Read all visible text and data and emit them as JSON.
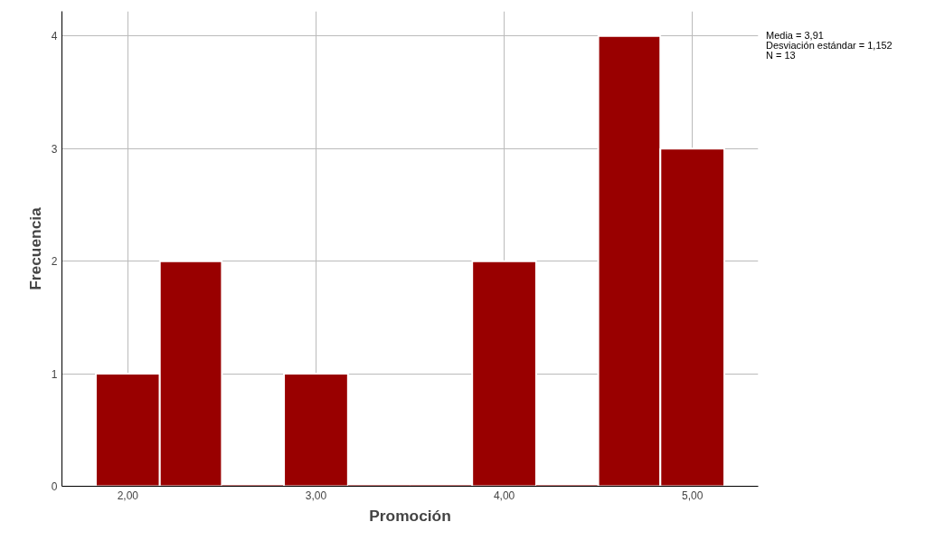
{
  "chart_data": {
    "type": "histogram",
    "xlabel": "Promoción",
    "ylabel": "Frecuencia",
    "bins": [
      1.83,
      2.17,
      2.5,
      2.83,
      3.17,
      3.5,
      3.83,
      4.17,
      4.5,
      4.83,
      5.17
    ],
    "values": [
      1,
      2,
      0,
      1,
      0,
      0,
      2,
      0,
      4,
      3
    ],
    "color": "#990000",
    "xlim": [
      1.65,
      5.35
    ],
    "ylim": [
      0,
      4.22
    ],
    "xticks": [
      {
        "value": 2,
        "label": "2,00"
      },
      {
        "value": 3,
        "label": "3,00"
      },
      {
        "value": 4,
        "label": "4,00"
      },
      {
        "value": 5,
        "label": "5,00"
      }
    ],
    "yticks": [
      0,
      1,
      2,
      3,
      4
    ],
    "grid": true,
    "annotations": [
      "Media = 3,91",
      "Desviación estándar = 1,152",
      "N = 13"
    ]
  }
}
